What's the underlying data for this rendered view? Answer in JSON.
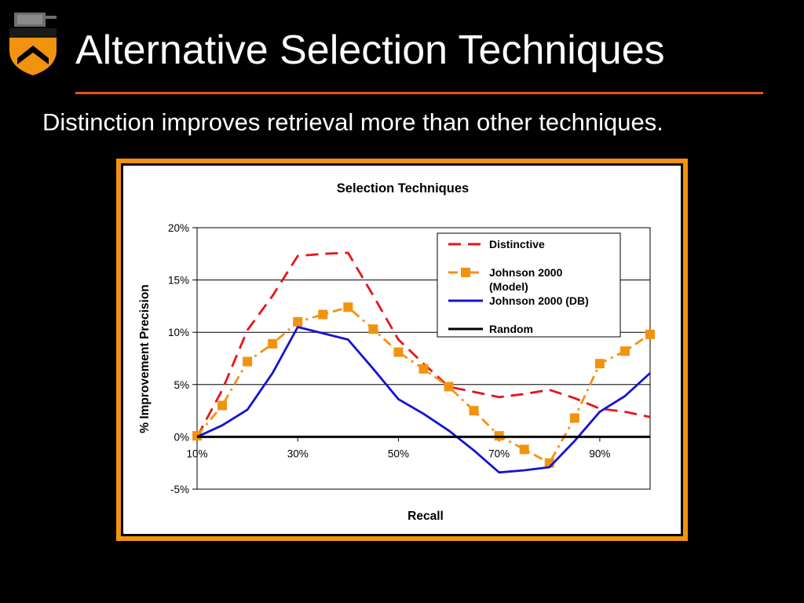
{
  "slide": {
    "title": "Alternative Selection Techniques",
    "subtitle": "Distinction improves retrieval more than other techniques.",
    "accent_color": "#e8541a",
    "frame_color": "#f2930f",
    "logo_icon": "university-shield-icon"
  },
  "chart_data": {
    "type": "line",
    "title": "Selection Techniques",
    "xlabel": "Recall",
    "ylabel": "% Improvement Precision",
    "x": [
      10,
      15,
      20,
      25,
      30,
      35,
      40,
      45,
      50,
      55,
      60,
      65,
      70,
      75,
      80,
      85,
      90,
      95,
      100
    ],
    "xlim": [
      10,
      100
    ],
    "xticks": [
      10,
      30,
      50,
      70,
      90
    ],
    "xtick_labels": [
      "10%",
      "30%",
      "50%",
      "70%",
      "90%"
    ],
    "ylim": [
      -5,
      20
    ],
    "yticks": [
      -5,
      0,
      5,
      10,
      15,
      20
    ],
    "ytick_labels": [
      "-5%",
      "0%",
      "5%",
      "10%",
      "15%",
      "20%"
    ],
    "grid": "horizontal",
    "legend_position": "top-right",
    "series": [
      {
        "name": "Distinctive",
        "color": "#e8131b",
        "dash": "dashed",
        "markers": false,
        "values": [
          0.0,
          4.5,
          10.2,
          13.5,
          17.3,
          17.5,
          17.6,
          13.5,
          9.3,
          7.0,
          4.8,
          4.3,
          3.8,
          4.1,
          4.5,
          3.7,
          2.7,
          2.4,
          1.9
        ]
      },
      {
        "name": "Johnson 2000 (Model)",
        "label_lines": [
          "Johnson 2000",
          "(Model)"
        ],
        "color": "#f2930f",
        "dash": "dashdot",
        "markers": true,
        "values": [
          0.1,
          3.0,
          7.2,
          8.9,
          11.0,
          11.7,
          12.4,
          10.3,
          8.1,
          6.5,
          4.8,
          2.5,
          0.1,
          -1.2,
          -2.5,
          1.8,
          7.0,
          8.2,
          9.8
        ]
      },
      {
        "name": "Johnson 2000 (DB)",
        "color": "#1414d0",
        "dash": "solid",
        "markers": false,
        "values": [
          0.0,
          1.1,
          2.6,
          6.1,
          10.5,
          9.9,
          9.3,
          6.5,
          3.6,
          2.2,
          0.6,
          -1.3,
          -3.4,
          -3.2,
          -2.9,
          -0.4,
          2.4,
          3.9,
          6.1
        ]
      },
      {
        "name": "Random",
        "color": "#000000",
        "dash": "solid",
        "markers": false,
        "values": [
          0,
          0,
          0,
          0,
          0,
          0,
          0,
          0,
          0,
          0,
          0,
          0,
          0,
          0,
          0,
          0,
          0,
          0,
          0
        ]
      }
    ]
  }
}
